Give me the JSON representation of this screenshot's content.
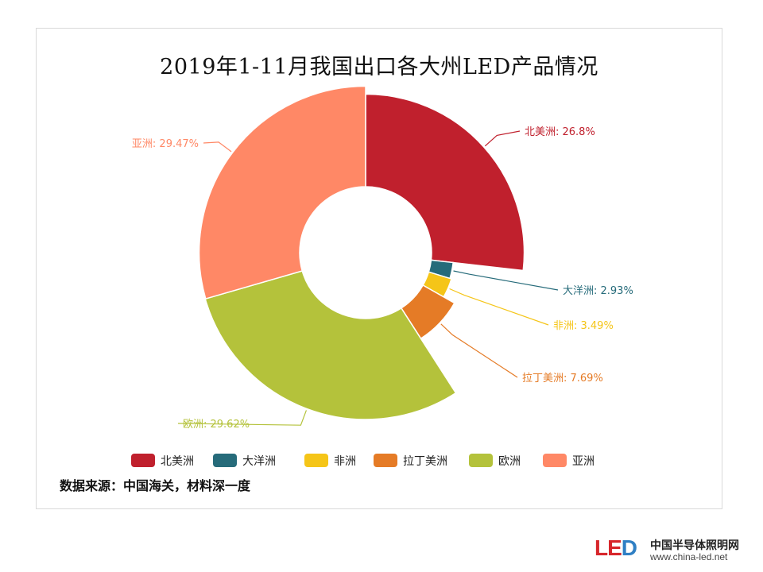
{
  "chart_data": {
    "type": "pie",
    "title": "2019年1-11月我国出口各大州LED产品情况",
    "slices": [
      {
        "name": "北美洲",
        "value": 26.8,
        "label": "北美洲: 26.8%",
        "color": "#c0202d"
      },
      {
        "name": "大洋洲",
        "value": 2.93,
        "label": "大洋洲: 2.93%",
        "color": "#266b7a"
      },
      {
        "name": "非洲",
        "value": 3.49,
        "label": "非洲: 3.49%",
        "color": "#f5c518"
      },
      {
        "name": "拉丁美洲",
        "value": 7.69,
        "label": "拉丁美洲: 7.69%",
        "color": "#e57b26"
      },
      {
        "name": "欧洲",
        "value": 29.62,
        "label": "欧洲: 29.62%",
        "color": "#b4c23b"
      },
      {
        "name": "亚洲",
        "value": 29.47,
        "label": "亚洲: 29.47%",
        "color": "#ff8866"
      }
    ],
    "legend": [
      "北美洲",
      "大洋洲",
      "非洲",
      "拉丁美洲",
      "欧洲",
      "亚洲"
    ]
  },
  "source": "数据来源：中国海关，材料深一度",
  "brand": {
    "logo": "LED",
    "name": "中国半导体照明网",
    "url": "www.china-led.net"
  }
}
